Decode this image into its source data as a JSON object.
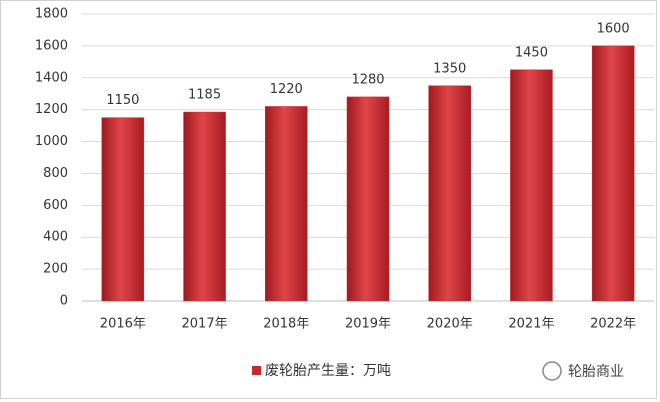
{
  "chart_data": {
    "type": "bar",
    "categories": [
      "2016年",
      "2017年",
      "2018年",
      "2019年",
      "2020年",
      "2021年",
      "2022年"
    ],
    "series": [
      {
        "name": "废轮胎产生量：万吨",
        "color": "#c8282e",
        "values": [
          1150,
          1185,
          1220,
          1280,
          1350,
          1450,
          1600
        ]
      }
    ],
    "ylim": [
      0,
      1800
    ],
    "yticks": [
      0,
      200,
      400,
      600,
      800,
      1000,
      1200,
      1400,
      1600,
      1800
    ],
    "grid": true,
    "legend": "bottom",
    "watermark": "轮胎商业"
  }
}
